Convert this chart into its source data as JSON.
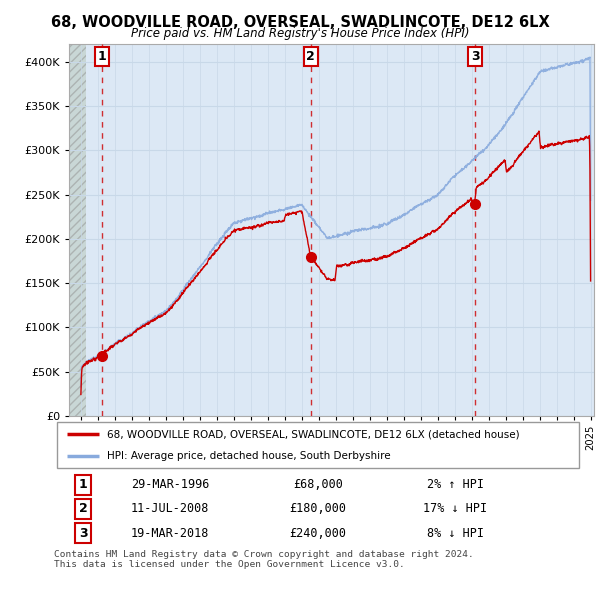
{
  "title_line1": "68, WOODVILLE ROAD, OVERSEAL, SWADLINCOTE, DE12 6LX",
  "title_line2": "Price paid vs. HM Land Registry's House Price Index (HPI)",
  "ylim": [
    0,
    420000
  ],
  "yticks": [
    0,
    50000,
    100000,
    150000,
    200000,
    250000,
    300000,
    350000,
    400000
  ],
  "ytick_labels": [
    "£0",
    "£50K",
    "£100K",
    "£150K",
    "£200K",
    "£250K",
    "£300K",
    "£350K",
    "£400K"
  ],
  "xlim_start": 1994.3,
  "xlim_end": 2025.2,
  "hatch_end": 1995.3,
  "sale_dates": [
    1996.23,
    2008.53,
    2018.21
  ],
  "sale_prices": [
    68000,
    180000,
    240000
  ],
  "sale_labels": [
    "1",
    "2",
    "3"
  ],
  "legend_line1": "68, WOODVILLE ROAD, OVERSEAL, SWADLINCOTE, DE12 6LX (detached house)",
  "legend_line2": "HPI: Average price, detached house, South Derbyshire",
  "table_entries": [
    {
      "num": "1",
      "date": "29-MAR-1996",
      "price": "£68,000",
      "hpi": "2% ↑ HPI"
    },
    {
      "num": "2",
      "date": "11-JUL-2008",
      "price": "£180,000",
      "hpi": "17% ↓ HPI"
    },
    {
      "num": "3",
      "date": "19-MAR-2018",
      "price": "£240,000",
      "hpi": "8% ↓ HPI"
    }
  ],
  "footer": "Contains HM Land Registry data © Crown copyright and database right 2024.\nThis data is licensed under the Open Government Licence v3.0.",
  "property_color": "#cc0000",
  "hpi_color": "#88aadd",
  "background_plot": "#dce8f5",
  "grid_color": "#c8d8e8",
  "dashed_line_color": "#cc0000"
}
